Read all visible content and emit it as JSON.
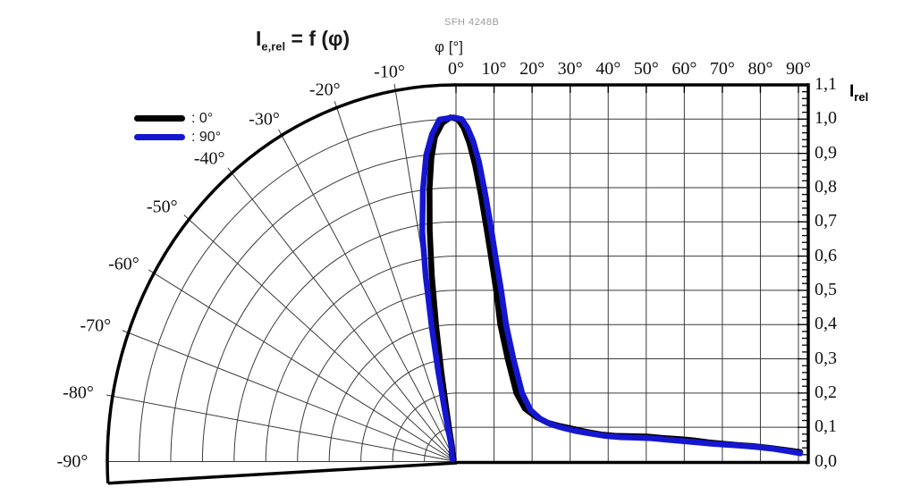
{
  "title": {
    "symbol": "I",
    "symbol_sub": "e,rel",
    "rest": " = f (φ)"
  },
  "watermark": "SFH 4248B",
  "phi_axis_label": "φ [°]",
  "right_axis_label": {
    "symbol": "I",
    "symbol_sub": "rel"
  },
  "top_ticks": [
    "0°",
    "10°",
    "20°",
    "30°",
    "40°",
    "50°",
    "60°",
    "70°",
    "80°",
    "90°"
  ],
  "right_ticks": [
    "1,1",
    "1,0",
    "0,9",
    "0,8",
    "0,7",
    "0,6",
    "0,5",
    "0,4",
    "0,3",
    "0,2",
    "0,1",
    "0,0"
  ],
  "polar_ticks": [
    {
      "angle": 10,
      "label": "-10°"
    },
    {
      "angle": 20,
      "label": "-20°"
    },
    {
      "angle": 30,
      "label": "-30°"
    },
    {
      "angle": 40,
      "label": "-40°"
    },
    {
      "angle": 50,
      "label": "-50°"
    },
    {
      "angle": 60,
      "label": "-60°"
    },
    {
      "angle": 70,
      "label": "-70°"
    },
    {
      "angle": 80,
      "label": "-80°"
    },
    {
      "angle": 90,
      "label": "-90°"
    }
  ],
  "legend": [
    {
      "label": ": 0°",
      "color": "#000000"
    },
    {
      "label": ": 90°",
      "color": "#1516d0"
    }
  ],
  "colors": {
    "curve_0deg": "#000000",
    "curve_90deg": "#1516d0",
    "grid": "#3a3a3a",
    "frame": "#000000",
    "watermark": "#9b9b9b"
  },
  "chart_data": {
    "type": "line",
    "title": "Ie,rel = f (φ) — relative radiant intensity vs. angle (half-polar left / cartesian right)",
    "xlabel": "φ [°]",
    "ylabel": "Irel",
    "x_range_polar_deg": [
      -90,
      0
    ],
    "x_range_cartesian_deg": [
      0,
      90
    ],
    "ylim": [
      0.0,
      1.1
    ],
    "y_tick_step": 0.1,
    "grid": true,
    "legend_position": "upper-left",
    "series": [
      {
        "name": "0°",
        "color": "#000000",
        "points": [
          [
            -45,
            0.01
          ],
          [
            -30,
            0.02
          ],
          [
            -22,
            0.03
          ],
          [
            -17,
            0.04
          ],
          [
            -14.5,
            0.06
          ],
          [
            -12.5,
            0.1
          ],
          [
            -11,
            0.17
          ],
          [
            -10,
            0.27
          ],
          [
            -9,
            0.4
          ],
          [
            -8,
            0.55
          ],
          [
            -7,
            0.68
          ],
          [
            -6,
            0.8
          ],
          [
            -5,
            0.89
          ],
          [
            -4,
            0.95
          ],
          [
            -2.5,
            0.99
          ],
          [
            -1,
            1.005
          ],
          [
            0.5,
            1.0
          ],
          [
            2,
            0.975
          ],
          [
            3.5,
            0.93
          ],
          [
            5,
            0.865
          ],
          [
            6.5,
            0.78
          ],
          [
            8,
            0.68
          ],
          [
            9,
            0.61
          ],
          [
            10.5,
            0.5
          ],
          [
            11.6,
            0.4
          ],
          [
            13.5,
            0.3
          ],
          [
            15.8,
            0.2
          ],
          [
            18,
            0.155
          ],
          [
            21,
            0.13
          ],
          [
            24,
            0.113
          ],
          [
            27,
            0.104
          ],
          [
            30,
            0.097
          ],
          [
            34,
            0.087
          ],
          [
            38,
            0.079
          ],
          [
            42,
            0.075
          ],
          [
            46,
            0.074
          ],
          [
            50,
            0.073
          ],
          [
            54,
            0.069
          ],
          [
            58,
            0.066
          ],
          [
            62,
            0.062
          ],
          [
            66,
            0.056
          ],
          [
            70,
            0.052
          ],
          [
            74,
            0.048
          ],
          [
            78,
            0.045
          ],
          [
            82,
            0.04
          ],
          [
            86,
            0.034
          ],
          [
            90,
            0.028
          ]
        ]
      },
      {
        "name": "90°",
        "color": "#1516d0",
        "points": [
          [
            -60,
            0.012
          ],
          [
            -40,
            0.02
          ],
          [
            -28,
            0.03
          ],
          [
            -20,
            0.04
          ],
          [
            -16.5,
            0.06
          ],
          [
            -14.5,
            0.1
          ],
          [
            -13,
            0.17
          ],
          [
            -12,
            0.27
          ],
          [
            -11,
            0.4
          ],
          [
            -10,
            0.55
          ],
          [
            -9,
            0.68
          ],
          [
            -7.5,
            0.8
          ],
          [
            -6,
            0.9
          ],
          [
            -4.5,
            0.96
          ],
          [
            -3,
            1.0
          ],
          [
            -0.5,
            1.005
          ],
          [
            1.5,
            1.0
          ],
          [
            3,
            0.975
          ],
          [
            4.5,
            0.935
          ],
          [
            6,
            0.875
          ],
          [
            7.5,
            0.79
          ],
          [
            8.9,
            0.7
          ],
          [
            10.3,
            0.6
          ],
          [
            11.8,
            0.5
          ],
          [
            13.1,
            0.4
          ],
          [
            15,
            0.3
          ],
          [
            17.3,
            0.2
          ],
          [
            19.5,
            0.15
          ],
          [
            22,
            0.125
          ],
          [
            25,
            0.108
          ],
          [
            28,
            0.098
          ],
          [
            31,
            0.09
          ],
          [
            35,
            0.082
          ],
          [
            39,
            0.075
          ],
          [
            43,
            0.071
          ],
          [
            47,
            0.07
          ],
          [
            51,
            0.068
          ],
          [
            55,
            0.064
          ],
          [
            59,
            0.06
          ],
          [
            63,
            0.056
          ],
          [
            67,
            0.052
          ],
          [
            71,
            0.049
          ],
          [
            75,
            0.046
          ],
          [
            79,
            0.042
          ],
          [
            83,
            0.037
          ],
          [
            87,
            0.03
          ],
          [
            90,
            0.024
          ]
        ]
      }
    ]
  }
}
